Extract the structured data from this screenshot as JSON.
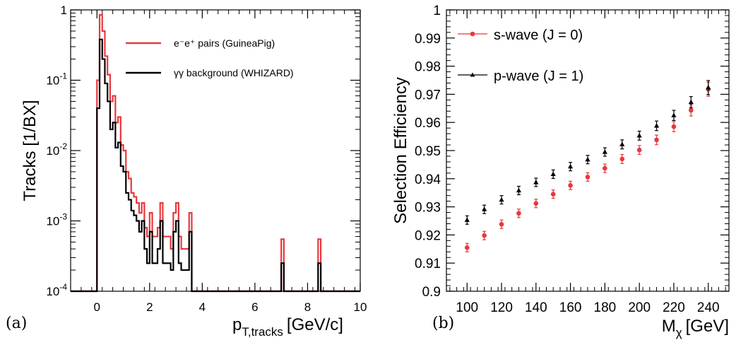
{
  "chart_data": [
    {
      "type": "line",
      "panel_label": "(a)",
      "xlabel_main": "p",
      "xlabel_sub": "T,tracks",
      "xlabel_unit": "[GeV/c]",
      "ylabel": "Tracks [1/BX]",
      "xlim": [
        -1,
        10
      ],
      "ylim": [
        0.0001,
        1
      ],
      "yscale": "log",
      "x_ticks": [
        "0",
        "2",
        "4",
        "6",
        "8",
        "10"
      ],
      "y_ticks": [
        {
          "base": "1",
          "exp": ""
        },
        {
          "base": "10",
          "exp": "-1"
        },
        {
          "base": "10",
          "exp": "-2"
        },
        {
          "base": "10",
          "exp": "-3"
        },
        {
          "base": "10",
          "exp": "-4"
        }
      ],
      "legend_position": "top-right",
      "bin_width": 0.1,
      "series": [
        {
          "name": "e⁻e⁺ pairs (GuineaPig)",
          "color": "#e8383d",
          "bins": [
            [
              0.0,
              0.1
            ],
            [
              0.1,
              0.85
            ],
            [
              0.2,
              0.5
            ],
            [
              0.3,
              0.22
            ],
            [
              0.4,
              0.12
            ],
            [
              0.5,
              0.05
            ],
            [
              0.6,
              0.06
            ],
            [
              0.7,
              0.025
            ],
            [
              0.8,
              0.03
            ],
            [
              0.9,
              0.012
            ],
            [
              1.0,
              0.01
            ],
            [
              1.1,
              0.005
            ],
            [
              1.2,
              0.004
            ],
            [
              1.3,
              0.0025
            ],
            [
              1.4,
              0.0022
            ],
            [
              1.5,
              0.0018
            ],
            [
              1.6,
              0.0013
            ],
            [
              1.7,
              0.0018
            ],
            [
              1.8,
              0.0008
            ],
            [
              1.9,
              0.0006
            ],
            [
              2.0,
              0.0013
            ],
            [
              2.1,
              0.0006
            ],
            [
              2.2,
              0.0006
            ],
            [
              2.3,
              0.0008
            ],
            [
              2.4,
              0.0018
            ],
            [
              2.5,
              0.0006
            ],
            [
              2.6,
              0.0006
            ],
            [
              2.7,
              0.0006
            ],
            [
              2.8,
              0.0004
            ],
            [
              2.9,
              0.0013
            ],
            [
              3.0,
              0.0018
            ],
            [
              3.1,
              0.0006
            ],
            [
              3.2,
              0.0004
            ],
            [
              3.3,
              0.0004
            ],
            [
              3.4,
              0.0004
            ],
            [
              3.5,
              0.0013
            ],
            [
              7.0,
              0.00055
            ],
            [
              8.4,
              0.00055
            ]
          ]
        },
        {
          "name": "γγ background (WHIZARD)",
          "color": "#000000",
          "bins": [
            [
              0.0,
              0.04
            ],
            [
              0.1,
              0.38
            ],
            [
              0.2,
              0.2
            ],
            [
              0.3,
              0.09
            ],
            [
              0.4,
              0.05
            ],
            [
              0.5,
              0.02
            ],
            [
              0.6,
              0.025
            ],
            [
              0.7,
              0.011
            ],
            [
              0.8,
              0.013
            ],
            [
              0.9,
              0.006
            ],
            [
              1.0,
              0.005
            ],
            [
              1.1,
              0.0025
            ],
            [
              1.2,
              0.002
            ],
            [
              1.3,
              0.0014
            ],
            [
              1.4,
              0.0012
            ],
            [
              1.5,
              0.001
            ],
            [
              1.6,
              0.0007
            ],
            [
              1.7,
              0.001
            ],
            [
              1.8,
              0.0004
            ],
            [
              1.9,
              0.00025
            ],
            [
              2.0,
              0.0007
            ],
            [
              2.1,
              0.00025
            ],
            [
              2.2,
              0.00025
            ],
            [
              2.3,
              0.0004
            ],
            [
              2.4,
              0.001
            ],
            [
              2.5,
              0.00025
            ],
            [
              2.6,
              0.00025
            ],
            [
              2.7,
              0.00025
            ],
            [
              2.8,
              0.0002
            ],
            [
              2.9,
              0.0007
            ],
            [
              3.0,
              0.001
            ],
            [
              3.1,
              0.00025
            ],
            [
              3.2,
              0.0002
            ],
            [
              3.3,
              0.0002
            ],
            [
              3.4,
              0.0002
            ],
            [
              3.5,
              0.0007
            ],
            [
              7.0,
              0.00025
            ],
            [
              8.4,
              0.00025
            ]
          ]
        }
      ]
    },
    {
      "type": "scatter",
      "panel_label": "(b)",
      "xlabel_main": "M",
      "xlabel_sub": "χ",
      "xlabel_unit": "[GeV]",
      "ylabel": "Selection Efficiency",
      "xlim": [
        88,
        252
      ],
      "ylim": [
        0.9,
        1.0
      ],
      "x_ticks": [
        "100",
        "120",
        "140",
        "160",
        "180",
        "200",
        "220",
        "240"
      ],
      "y_ticks": [
        "0.9",
        "0.91",
        "0.92",
        "0.93",
        "0.94",
        "0.95",
        "0.96",
        "0.97",
        "0.98",
        "0.99",
        "1"
      ],
      "legend_position": "top-left",
      "x": [
        100,
        110,
        120,
        130,
        140,
        150,
        160,
        170,
        180,
        190,
        200,
        210,
        220,
        230,
        240
      ],
      "series": [
        {
          "name": "s-wave (J = 0)",
          "color": "#e8383d",
          "marker": "circle",
          "values": [
            0.9155,
            0.9198,
            0.9238,
            0.9277,
            0.9312,
            0.9345,
            0.9376,
            0.9406,
            0.9437,
            0.947,
            0.9502,
            0.9538,
            0.9585,
            0.9643,
            0.9718
          ],
          "errors": [
            0.0015,
            0.0015,
            0.0015,
            0.0015,
            0.0015,
            0.0015,
            0.0015,
            0.0015,
            0.0015,
            0.0016,
            0.0016,
            0.0017,
            0.0018,
            0.002,
            0.0025
          ]
        },
        {
          "name": "p-wave (J = 1)",
          "color": "#000000",
          "marker": "triangle",
          "values": [
            0.9253,
            0.9291,
            0.9325,
            0.9358,
            0.9387,
            0.9416,
            0.9443,
            0.9468,
            0.9495,
            0.9522,
            0.9553,
            0.9588,
            0.9625,
            0.9672,
            0.9724
          ],
          "errors": [
            0.0015,
            0.0015,
            0.0015,
            0.0015,
            0.0015,
            0.0015,
            0.0015,
            0.0015,
            0.0015,
            0.0016,
            0.0016,
            0.0017,
            0.0018,
            0.002,
            0.0025
          ]
        }
      ]
    }
  ]
}
